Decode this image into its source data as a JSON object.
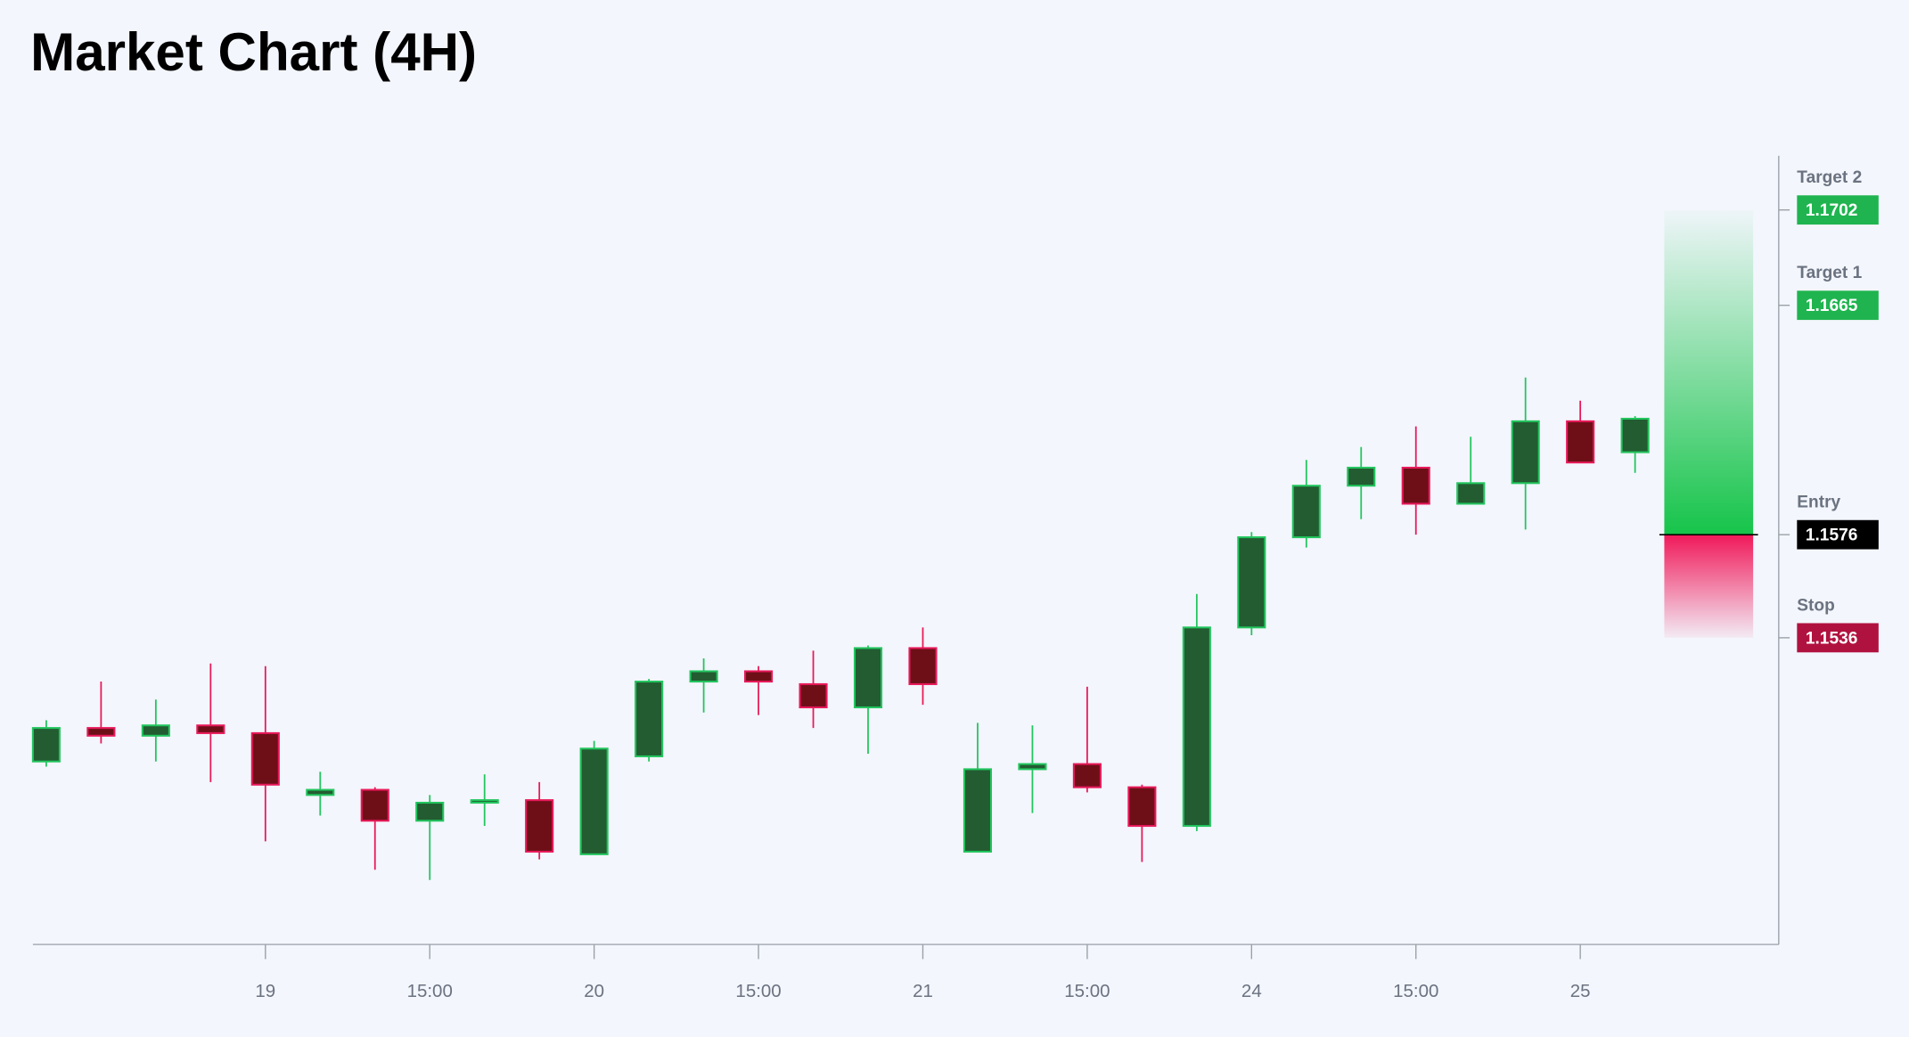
{
  "chart_data": {
    "type": "candlestick",
    "title": "Market Chart (4H)",
    "categories": [
      null,
      null,
      null,
      null,
      "19",
      null,
      null,
      "15:00",
      null,
      null,
      "20",
      null,
      null,
      "15:00",
      null,
      null,
      "21",
      null,
      null,
      "15:00",
      null,
      null,
      "24",
      null,
      null,
      "15:00",
      null,
      null,
      "25",
      null
    ],
    "open": [
      1.1488,
      1.1501,
      1.1498,
      1.1502,
      1.1499,
      1.1475,
      1.1477,
      1.1465,
      1.1472,
      1.1473,
      1.1452,
      1.149,
      1.1519,
      1.1523,
      1.1518,
      1.1509,
      1.1532,
      1.1453,
      1.1485,
      1.1487,
      1.1478,
      1.1463,
      1.154,
      1.1575,
      1.1595,
      1.1602,
      1.1588,
      1.1596,
      1.162,
      1.1608
    ],
    "high": [
      1.1504,
      1.1519,
      1.1512,
      1.1526,
      1.1525,
      1.1484,
      1.1478,
      1.1475,
      1.1483,
      1.148,
      1.1496,
      1.152,
      1.1528,
      1.1525,
      1.1531,
      1.1533,
      1.154,
      1.1503,
      1.1502,
      1.1517,
      1.1479,
      1.1553,
      1.1577,
      1.1605,
      1.161,
      1.1618,
      1.1614,
      1.1637,
      1.1628,
      1.1622
    ],
    "low": [
      1.1486,
      1.1495,
      1.1488,
      1.148,
      1.1457,
      1.1467,
      1.1446,
      1.1442,
      1.1463,
      1.145,
      1.1452,
      1.1488,
      1.1507,
      1.1506,
      1.1501,
      1.1491,
      1.151,
      1.1453,
      1.1468,
      1.1476,
      1.1449,
      1.1461,
      1.1537,
      1.1571,
      1.1582,
      1.1576,
      1.1588,
      1.1578,
      1.1604,
      1.16
    ],
    "close": [
      1.1501,
      1.1498,
      1.1502,
      1.1499,
      1.1479,
      1.1477,
      1.1465,
      1.1472,
      1.1473,
      1.1453,
      1.1493,
      1.1519,
      1.1523,
      1.1519,
      1.1509,
      1.1532,
      1.1518,
      1.1485,
      1.1487,
      1.1478,
      1.1463,
      1.154,
      1.1575,
      1.1595,
      1.1602,
      1.1588,
      1.1596,
      1.162,
      1.1604,
      1.1621
    ],
    "up_color": "#235c31",
    "up_border": "#22c55e",
    "down_color": "#6e0f18",
    "down_border": "#e8195a",
    "ylim": [
      1.1417,
      1.1723
    ],
    "levels": [
      {
        "name": "Target 2",
        "value": 1.1702,
        "color": "#1fb44f"
      },
      {
        "name": "Target 1",
        "value": 1.1665,
        "color": "#1fb44f"
      },
      {
        "name": "Entry",
        "value": 1.1576,
        "color": "#000000"
      },
      {
        "name": "Stop",
        "value": 1.1536,
        "color": "#b0123f"
      }
    ]
  }
}
